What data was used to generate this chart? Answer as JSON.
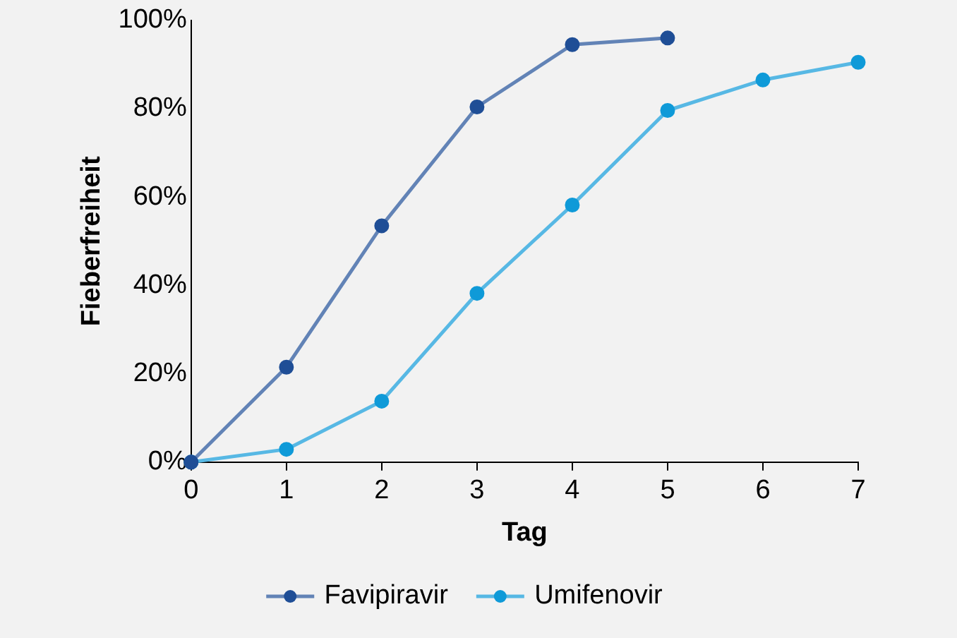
{
  "chart_data": {
    "type": "line",
    "xlabel": "Tag",
    "ylabel": "Fieberfreiheit",
    "x": [
      0,
      1,
      2,
      3,
      4,
      5,
      6,
      7
    ],
    "series": [
      {
        "name": "Favipiravir",
        "color": "#1f4e96",
        "values": [
          0,
          21.5,
          53.5,
          80.4,
          94.5,
          96,
          null,
          null
        ]
      },
      {
        "name": "Umifenovir",
        "color": "#0f9ad8",
        "values": [
          0,
          2.9,
          13.8,
          38.2,
          58.2,
          79.6,
          86.5,
          90.5
        ]
      }
    ],
    "xlim": [
      0,
      7
    ],
    "xticks": [
      0,
      1,
      2,
      3,
      4,
      5,
      6,
      7
    ],
    "ylim": [
      0,
      100
    ],
    "yticks": [
      {
        "value": 0,
        "label": "0%"
      },
      {
        "value": 20,
        "label": "20%"
      },
      {
        "value": 40,
        "label": "40%"
      },
      {
        "value": 60,
        "label": "60%"
      },
      {
        "value": 80,
        "label": "80%"
      },
      {
        "value": 100,
        "label": "100%"
      }
    ],
    "grid": false,
    "legend": "bottom",
    "marker": "circle",
    "line_style": "solid"
  }
}
